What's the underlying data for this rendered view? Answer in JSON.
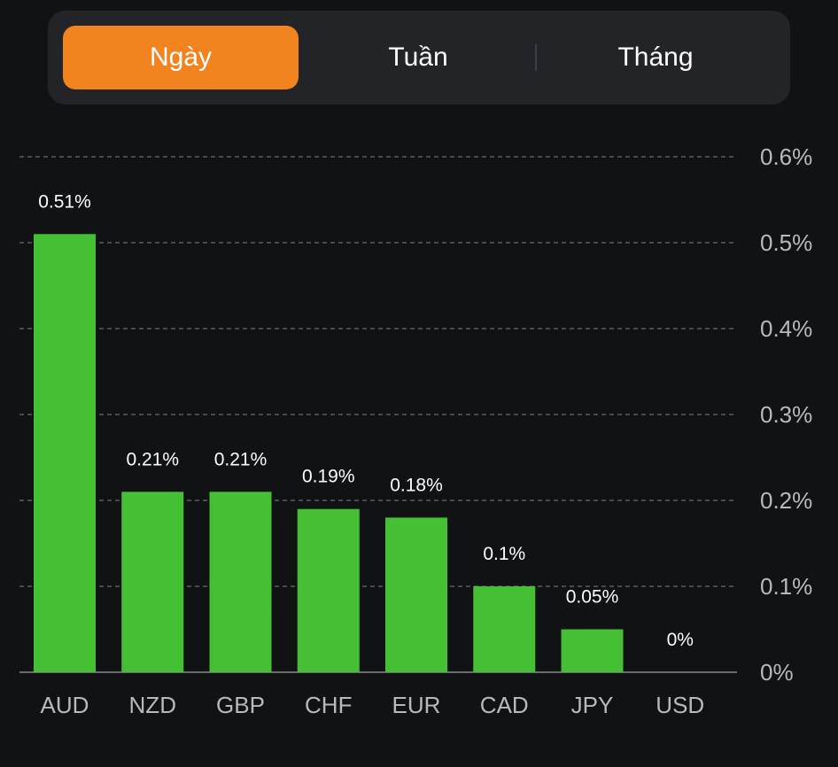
{
  "tabs": [
    {
      "label": "Ngày",
      "active": true
    },
    {
      "label": "Tuần",
      "active": false
    },
    {
      "label": "Tháng",
      "active": false
    }
  ],
  "colors": {
    "background": "#111214",
    "tab_bar": "#222428",
    "accent": "#f2841f",
    "bar": "#45bf33",
    "grid": "#5a5c61",
    "axis": "#6a6c71"
  },
  "chart_data": {
    "type": "bar",
    "categories": [
      "AUD",
      "NZD",
      "GBP",
      "CHF",
      "EUR",
      "CAD",
      "JPY",
      "USD"
    ],
    "values": [
      0.51,
      0.21,
      0.21,
      0.19,
      0.18,
      0.1,
      0.05,
      0
    ],
    "value_labels": [
      "0.51%",
      "0.21%",
      "0.21%",
      "0.19%",
      "0.18%",
      "0.1%",
      "0.05%",
      "0%"
    ],
    "ylim": [
      0,
      0.6
    ],
    "yticks": [
      0,
      0.1,
      0.2,
      0.3,
      0.4,
      0.5,
      0.6
    ],
    "ytick_labels": [
      "0%",
      "0.1%",
      "0.2%",
      "0.3%",
      "0.4%",
      "0.5%",
      "0.6%"
    ],
    "y_axis_position": "right",
    "grid": true,
    "title": "",
    "xlabel": "",
    "ylabel": ""
  }
}
